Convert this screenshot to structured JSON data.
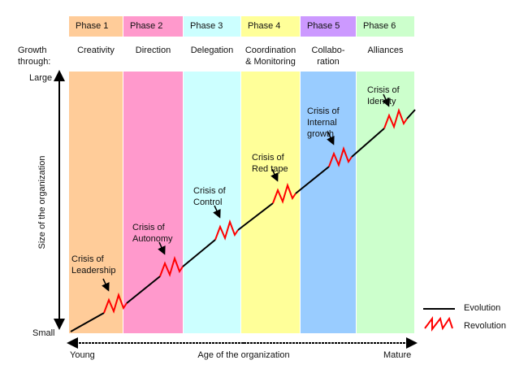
{
  "phases": [
    {
      "label": "Phase 1",
      "growth": "Creativity",
      "header_color": "#ffcc99",
      "body_color": "#ffcc99"
    },
    {
      "label": "Phase 2",
      "growth": "Direction",
      "header_color": "#ff99cc",
      "body_color": "#ff99cc"
    },
    {
      "label": "Phase 3",
      "growth": "Delegation",
      "header_color": "#ccffff",
      "body_color": "#ccffff"
    },
    {
      "label": "Phase 4",
      "growth": "Coordination\n& Monitoring",
      "header_color": "#ffff99",
      "body_color": "#ffff99"
    },
    {
      "label": "Phase 5",
      "growth": "Collabo-\nration",
      "header_color": "#cc99ff",
      "body_color": "#99ccff"
    },
    {
      "label": "Phase 6",
      "growth": "Alliances",
      "header_color": "#ccffcc",
      "body_color": "#ccffcc"
    }
  ],
  "growth_heading": "Growth\nthrough:",
  "y_axis": {
    "label": "Size of the organization",
    "top": "Large",
    "bottom": "Small"
  },
  "x_axis": {
    "label": "Age of the organization",
    "left": "Young",
    "right": "Mature"
  },
  "crises": [
    "Crisis of\nLeadership",
    "Crisis of\nAutonomy",
    "Crisis of\nControl",
    "Crisis of\nRed tape",
    "Crisis of\nInternal\ngrowth",
    "Crisis of\nIdentity"
  ],
  "legend": {
    "evolution": "Evolution",
    "revolution": "Revolution",
    "evolution_color": "#000000",
    "revolution_color": "#ff0000"
  }
}
